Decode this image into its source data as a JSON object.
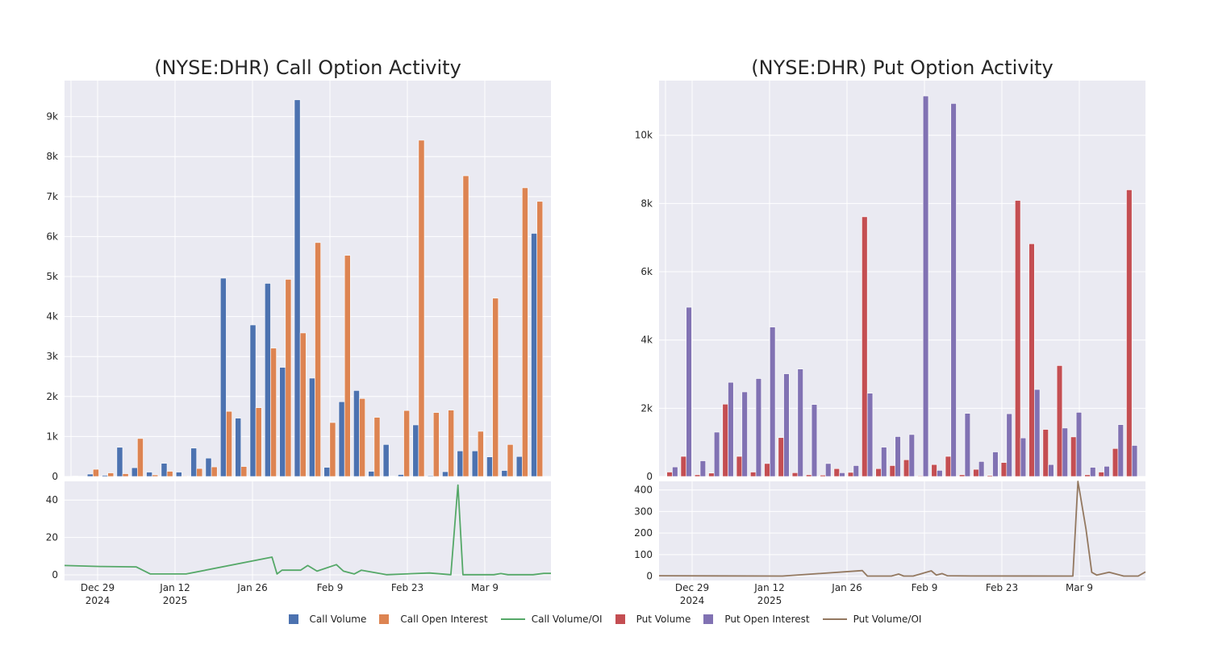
{
  "colors": {
    "call_volume": "#4C72B0",
    "call_oi": "#DD8452",
    "call_ratio": "#55A868",
    "put_volume": "#C44E52",
    "put_oi": "#8172B3",
    "put_ratio": "#937860",
    "plot_bg": "#EAEAF2",
    "grid": "#ffffff"
  },
  "legend": [
    {
      "label": "Call Volume",
      "kind": "square",
      "color": "#4C72B0"
    },
    {
      "label": "Call Open Interest",
      "kind": "square",
      "color": "#DD8452"
    },
    {
      "label": "Call Volume/OI",
      "kind": "line",
      "color": "#55A868"
    },
    {
      "label": "Put Volume",
      "kind": "square",
      "color": "#C44E52"
    },
    {
      "label": "Put Open Interest",
      "kind": "square",
      "color": "#8172B3"
    },
    {
      "label": "Put Volume/OI",
      "kind": "line",
      "color": "#937860"
    }
  ],
  "chart_data": [
    {
      "type": "bar",
      "title": "(NYSE:DHR) Call Option Activity",
      "xlabel": "",
      "ylabel": "",
      "x_ticks": [
        [
          "Dec 29",
          "2024"
        ],
        [
          "Jan 12",
          "2025"
        ],
        [
          "Jan 26"
        ],
        [
          "Feb 9"
        ],
        [
          "Feb 23"
        ],
        [
          "Mar 9"
        ]
      ],
      "ylim": [
        0,
        9900
      ],
      "y_ticks": [
        0,
        1000,
        2000,
        3000,
        4000,
        5000,
        6000,
        7000,
        8000,
        9000
      ],
      "y_tick_labels": [
        "0",
        "1k",
        "2k",
        "3k",
        "4k",
        "5k",
        "6k",
        "7k",
        "8k",
        "9k"
      ],
      "grid": true,
      "series": [
        {
          "name": "Call Volume",
          "color": "#4C72B0",
          "values": [
            10,
            60,
            30,
            730,
            220,
            110,
            330,
            110,
            710,
            460,
            4960,
            1460,
            3790,
            4830,
            2730,
            9420,
            2460,
            230,
            1870,
            2150,
            130,
            800,
            50,
            1290,
            20,
            120,
            640,
            640,
            490,
            150,
            500,
            6080
          ]
        },
        {
          "name": "Call Open Interest",
          "color": "#DD8452",
          "values": [
            5,
            180,
            90,
            70,
            950,
            40,
            130,
            15,
            200,
            240,
            1630,
            250,
            1720,
            3210,
            4930,
            3590,
            5850,
            1350,
            5530,
            1950,
            1480,
            10,
            1650,
            8410,
            1600,
            1660,
            7520,
            1130,
            4460,
            800,
            7220,
            6880
          ]
        }
      ]
    },
    {
      "type": "line",
      "title": "",
      "xlabel": "",
      "ylabel": "",
      "ylim": [
        -3,
        50
      ],
      "y_ticks": [
        0,
        20,
        40
      ],
      "y_tick_labels": [
        "0",
        "20",
        "40"
      ],
      "grid": true,
      "series": [
        {
          "name": "Call Volume/OI",
          "color": "#55A868",
          "points": [
            [
              0,
              5.0
            ],
            [
              5,
              4.5
            ],
            [
              10,
              4.3
            ],
            [
              12,
              0.5
            ],
            [
              17,
              0.5
            ],
            [
              29,
              9.5
            ],
            [
              29.7,
              0.5
            ],
            [
              30.4,
              2.5
            ],
            [
              33,
              2.5
            ],
            [
              34,
              5.0
            ],
            [
              35.3,
              2.0
            ],
            [
              38,
              5.5
            ],
            [
              39,
              2.0
            ],
            [
              40.5,
              0.5
            ],
            [
              41.5,
              2.5
            ],
            [
              45,
              0.1
            ],
            [
              51,
              1.0
            ],
            [
              54,
              0.1
            ],
            [
              55,
              48.0
            ],
            [
              55.7,
              0.1
            ],
            [
              60,
              0.1
            ],
            [
              61,
              0.7
            ],
            [
              62,
              0.1
            ],
            [
              65.5,
              0.1
            ],
            [
              67,
              0.8
            ],
            [
              68,
              0.8
            ]
          ]
        }
      ]
    },
    {
      "type": "bar",
      "title": "(NYSE:DHR) Put Option Activity",
      "xlabel": "",
      "ylabel": "",
      "x_ticks": [
        [
          "Dec 29",
          "2024"
        ],
        [
          "Jan 12",
          "2025"
        ],
        [
          "Jan 26"
        ],
        [
          "Feb 9"
        ],
        [
          "Feb 23"
        ],
        [
          "Mar 9"
        ]
      ],
      "ylim": [
        0,
        11600
      ],
      "y_ticks": [
        0,
        2000,
        4000,
        6000,
        8000,
        10000
      ],
      "y_tick_labels": [
        "0",
        "2k",
        "4k",
        "6k",
        "8k",
        "10k"
      ],
      "grid": true,
      "series": [
        {
          "name": "Put Volume",
          "color": "#C44E52",
          "values": [
            130,
            590,
            50,
            100,
            2120,
            590,
            130,
            380,
            1140,
            110,
            50,
            40,
            230,
            120,
            7610,
            230,
            320,
            490,
            20,
            350,
            590,
            50,
            210,
            30,
            410,
            8090,
            6820,
            1380,
            3250,
            1160,
            50,
            130,
            820,
            8400
          ]
        },
        {
          "name": "Put Open Interest",
          "color": "#8172B3",
          "values": [
            280,
            4960,
            460,
            1300,
            2760,
            2480,
            2870,
            4380,
            3010,
            3150,
            2110,
            380,
            110,
            320,
            2440,
            860,
            1170,
            1230,
            11150,
            180,
            10930,
            1850,
            440,
            720,
            1840,
            1130,
            2550,
            350,
            1420,
            1880,
            270,
            300,
            1520,
            910
          ]
        }
      ]
    },
    {
      "type": "line",
      "title": "",
      "xlabel": "",
      "ylabel": "",
      "ylim": [
        -20,
        440
      ],
      "y_ticks": [
        0,
        100,
        200,
        300,
        400
      ],
      "y_tick_labels": [
        "0",
        "100",
        "200",
        "300",
        "400"
      ],
      "grid": true,
      "series": [
        {
          "name": "Put Volume/OI",
          "color": "#937860",
          "points": [
            [
              0,
              2
            ],
            [
              17,
              0.5
            ],
            [
              28,
              26
            ],
            [
              28.7,
              0.5
            ],
            [
              32,
              0.5
            ],
            [
              33,
              10
            ],
            [
              33.7,
              0.5
            ],
            [
              35,
              0.5
            ],
            [
              37.5,
              25
            ],
            [
              38.2,
              5
            ],
            [
              39,
              12
            ],
            [
              39.7,
              2
            ],
            [
              43,
              1
            ],
            [
              57,
              0.5
            ],
            [
              57.7,
              440
            ],
            [
              58.8,
              220
            ],
            [
              59.6,
              18
            ],
            [
              60.3,
              5
            ],
            [
              62,
              18
            ],
            [
              64,
              0.5
            ],
            [
              66,
              0.5
            ],
            [
              67,
              20
            ]
          ]
        }
      ]
    }
  ]
}
